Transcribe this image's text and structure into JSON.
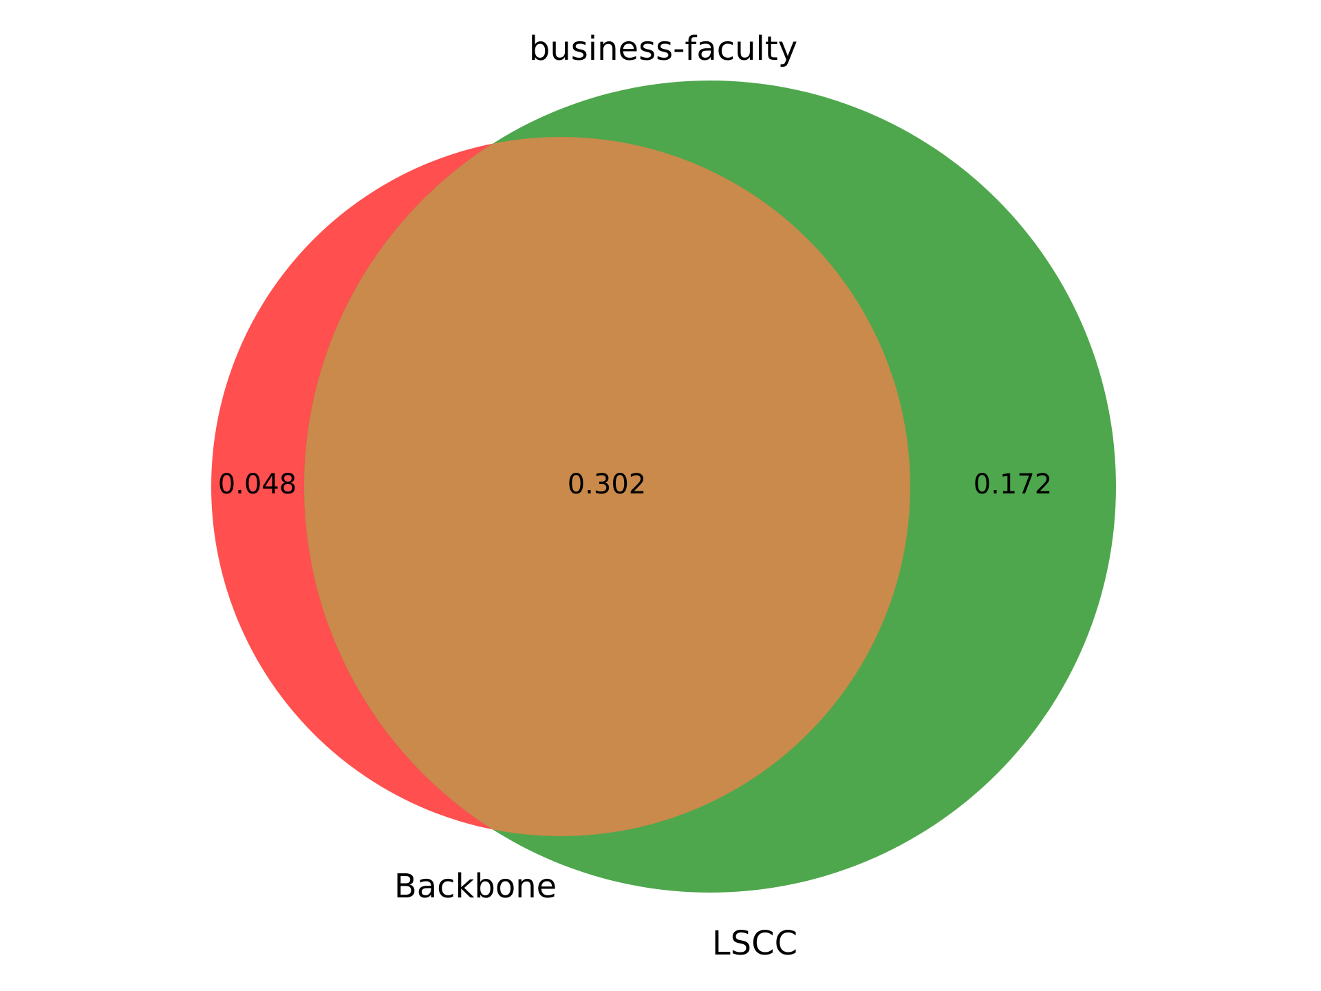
{
  "title": "business-faculty",
  "sets": [
    {
      "name": "Backbone",
      "color": "#ff4f4f"
    },
    {
      "name": "LSCC",
      "color": "#4ea74c"
    }
  ],
  "regions": {
    "backbone_only": "0.048",
    "intersection": "0.302",
    "lscc_only": "0.172"
  },
  "colors": {
    "backbone_only": "#ff4f4f",
    "lscc_only": "#4ea74c",
    "intersection": "#c98a4b"
  }
}
